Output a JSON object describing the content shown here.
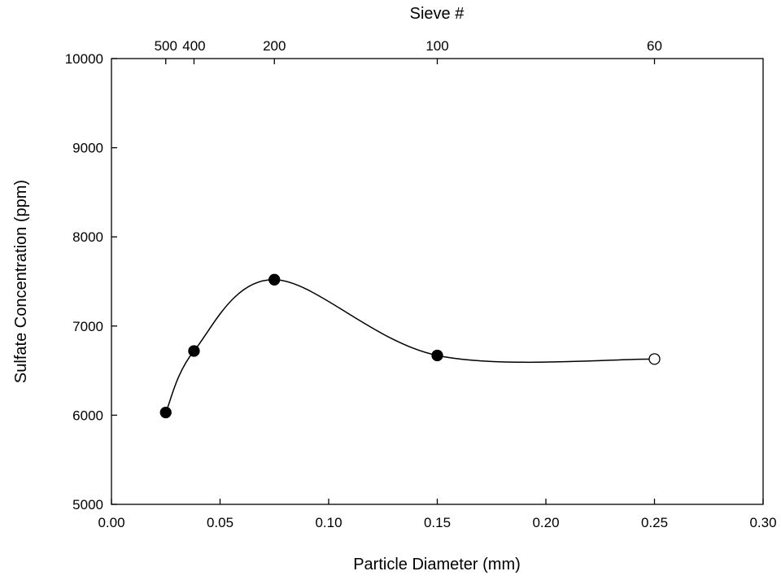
{
  "chart_data": {
    "type": "scatter",
    "xlabel": "Particle Diameter (mm)",
    "ylabel": "Sulfate Concentration (ppm)",
    "top_axis_label": "Sieve #",
    "xlim": [
      0.0,
      0.3
    ],
    "ylim": [
      5000,
      10000
    ],
    "x_ticks": [
      0.0,
      0.05,
      0.1,
      0.15,
      0.2,
      0.25,
      0.3
    ],
    "x_tick_labels": [
      "0.00",
      "0.05",
      "0.10",
      "0.15",
      "0.20",
      "0.25",
      "0.30"
    ],
    "y_ticks": [
      5000,
      6000,
      7000,
      8000,
      9000,
      10000
    ],
    "y_tick_labels": [
      "5000",
      "6000",
      "7000",
      "8000",
      "9000",
      "10000"
    ],
    "top_ticks": [
      {
        "label": "500",
        "x": 0.025
      },
      {
        "label": "400",
        "x": 0.038
      },
      {
        "label": "200",
        "x": 0.075
      },
      {
        "label": "100",
        "x": 0.15
      },
      {
        "label": "60",
        "x": 0.25
      }
    ],
    "grid": false,
    "series": [
      {
        "points": [
          {
            "x": 0.025,
            "y": 6030,
            "filled": true
          },
          {
            "x": 0.038,
            "y": 6720,
            "filled": true
          },
          {
            "x": 0.075,
            "y": 7520,
            "filled": true
          },
          {
            "x": 0.15,
            "y": 6670,
            "filled": true
          },
          {
            "x": 0.25,
            "y": 6630,
            "filled": false
          }
        ],
        "smooth_curve": true,
        "color": "#000000"
      }
    ]
  }
}
